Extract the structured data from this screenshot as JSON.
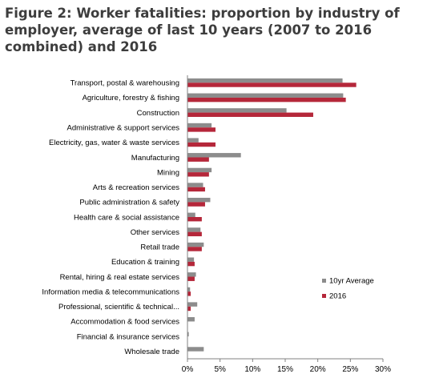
{
  "chart_data": {
    "type": "bar",
    "orientation": "horizontal",
    "title_lines": [
      "Figure 2: Worker fatalities: proportion by industry of",
      "employer, average of last 10 years (2007 to 2016",
      "combined) and 2016"
    ],
    "categories": [
      "Transport, postal & warehousing",
      "Agriculture, forestry & fishing",
      "Construction",
      "Administrative & support services",
      "Electricity, gas, water & waste services",
      "Manufacturing",
      "Mining",
      "Arts & recreation services",
      "Public administration & safety",
      "Health care & social assistance",
      "Other services",
      "Retail trade",
      "Education & training",
      "Rental, hiring & real estate services",
      "Information media & telecommunications",
      "Professional, scientific & technical...",
      "Accommodation & food services",
      "Financial & insurance services",
      "Wholesale trade"
    ],
    "series": [
      {
        "name": "10yr Average",
        "color": "#8c8c8c",
        "values": [
          23.8,
          23.9,
          15.2,
          3.7,
          1.7,
          8.2,
          3.7,
          2.4,
          3.5,
          1.2,
          2.0,
          2.5,
          1.0,
          1.3,
          0.4,
          1.5,
          1.1,
          0.2,
          2.5
        ]
      },
      {
        "name": "2016",
        "color": "#b5273a",
        "values": [
          25.9,
          24.3,
          19.3,
          4.3,
          4.3,
          3.3,
          3.3,
          2.7,
          2.7,
          2.2,
          2.2,
          2.2,
          1.1,
          1.1,
          0.5,
          0.5,
          0,
          0,
          0
        ]
      }
    ],
    "xlim": [
      0,
      30
    ],
    "xticks": [
      0,
      5,
      10,
      15,
      20,
      25,
      30
    ],
    "tick_suffix": "%",
    "grid": false,
    "legend_placement": "bottom-right"
  }
}
